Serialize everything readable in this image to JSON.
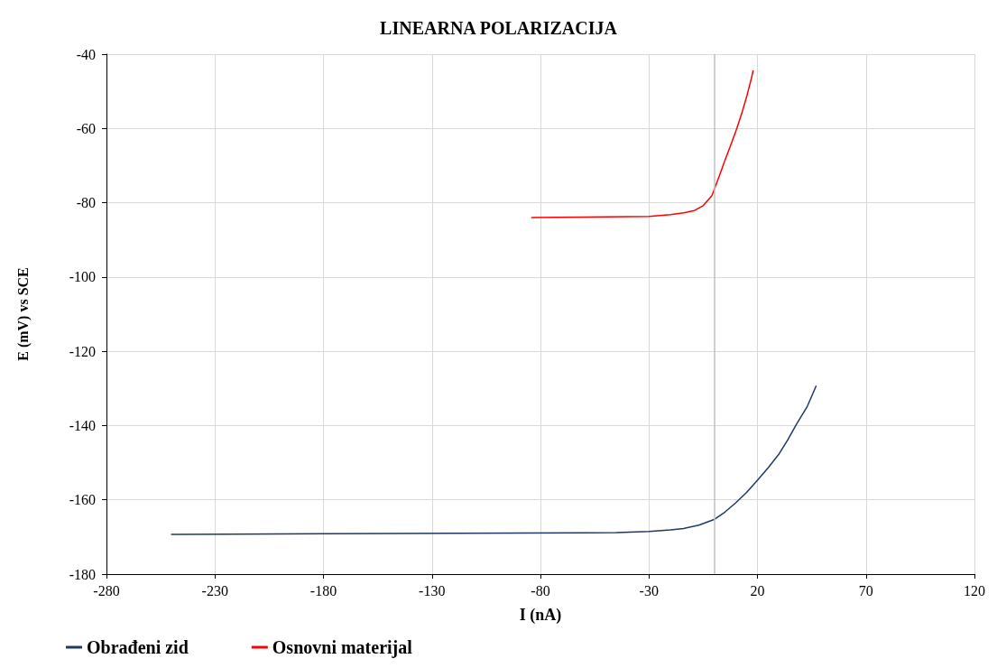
{
  "chart_data": {
    "type": "line",
    "title": "LINEARNA POLARIZACIJA",
    "xlabel": "I (nA)",
    "ylabel": "E (mV) vs SCE",
    "xlim": [
      -280,
      120
    ],
    "xticks": [
      -280,
      -230,
      -180,
      -130,
      -80,
      -30,
      20,
      70,
      120
    ],
    "ylim": [
      -180,
      -40
    ],
    "yticks": [
      -180,
      -160,
      -140,
      -120,
      -100,
      -80,
      -60,
      -40
    ],
    "grid": true,
    "legend": "bottom left",
    "marker": "none",
    "line_style": "solid",
    "ref_lines": [
      {
        "axis": "x",
        "value": 0,
        "color": "#bfbfbf"
      }
    ],
    "series": [
      {
        "name": "Obrađeni zid",
        "color": "#1f3864",
        "x": [
          -250,
          -180,
          -120,
          -60,
          -45,
          -30,
          -20,
          -14,
          -7,
          0,
          5,
          10,
          15,
          20,
          25,
          30,
          34,
          38,
          43,
          47
        ],
        "values": [
          -169.3,
          -169.1,
          -169,
          -168.9,
          -168.8,
          -168.5,
          -168.1,
          -167.7,
          -166.8,
          -165.3,
          -163.3,
          -160.8,
          -158,
          -154.7,
          -151.3,
          -147.6,
          -143.8,
          -139.6,
          -134.8,
          -129.4
        ]
      },
      {
        "name": "Osnovni materijal",
        "color": "#ff0000",
        "x": [
          -84,
          -60,
          -30,
          -20,
          -14,
          -9,
          -5,
          -1,
          2,
          5,
          8,
          10.5,
          13,
          15,
          17,
          18
        ],
        "values": [
          -84,
          -83.9,
          -83.7,
          -83.2,
          -82.7,
          -82.1,
          -80.8,
          -78.1,
          -73.5,
          -68.6,
          -64,
          -60,
          -55.5,
          -51.5,
          -47,
          -44.5
        ]
      }
    ]
  }
}
